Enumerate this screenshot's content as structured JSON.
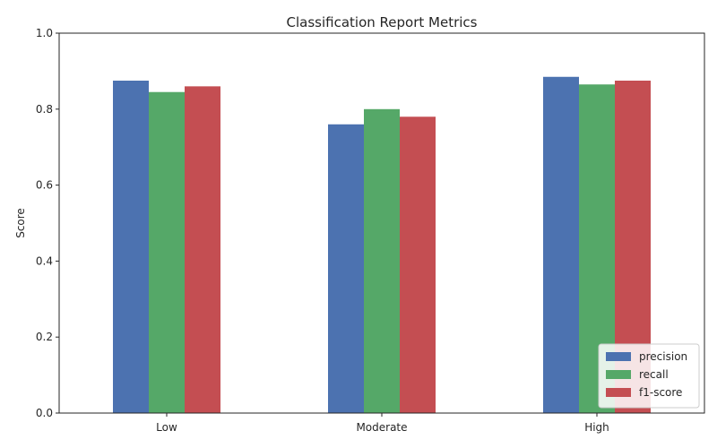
{
  "chart_data": {
    "type": "bar",
    "title": "Classification Report Metrics",
    "xlabel": "",
    "ylabel": "Score",
    "ylim": [
      0,
      1
    ],
    "yticks": [
      "0.0",
      "0.2",
      "0.4",
      "0.6",
      "0.8",
      "1.0"
    ],
    "categories": [
      "Low",
      "Moderate",
      "High"
    ],
    "series": [
      {
        "name": "precision",
        "color": "#4c72b0",
        "values": [
          0.875,
          0.76,
          0.885
        ]
      },
      {
        "name": "recall",
        "color": "#55a868",
        "values": [
          0.845,
          0.8,
          0.865
        ]
      },
      {
        "name": "f1-score",
        "color": "#c44e52",
        "values": [
          0.86,
          0.78,
          0.875
        ]
      }
    ],
    "grid": false,
    "legend_position": "bottom-right"
  }
}
